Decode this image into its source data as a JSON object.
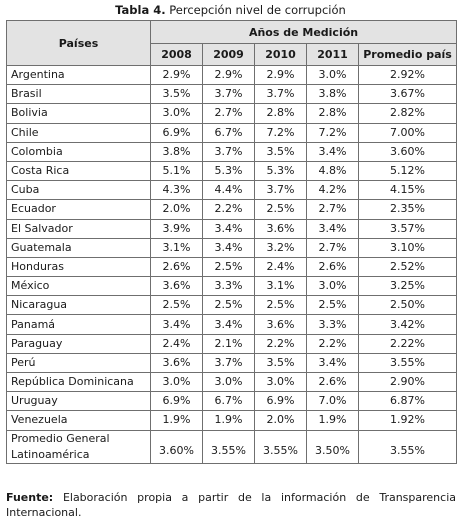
{
  "caption": {
    "label": "Tabla 4.",
    "title": "Percepción nivel de corrupción"
  },
  "header": {
    "countries": "Países",
    "group": "Años de Medición",
    "columns": [
      "2008",
      "2009",
      "2010",
      "2011",
      "Promedio país"
    ]
  },
  "rows": [
    {
      "country": "Argentina",
      "values": [
        "2.9%",
        "2.9%",
        "2.9%",
        "3.0%",
        "2.92%"
      ]
    },
    {
      "country": "Brasil",
      "values": [
        "3.5%",
        "3.7%",
        "3.7%",
        "3.8%",
        "3.67%"
      ]
    },
    {
      "country": "Bolivia",
      "values": [
        "3.0%",
        "2.7%",
        "2.8%",
        "2.8%",
        "2.82%"
      ]
    },
    {
      "country": "Chile",
      "values": [
        "6.9%",
        "6.7%",
        "7.2%",
        "7.2%",
        "7.00%"
      ]
    },
    {
      "country": "Colombia",
      "values": [
        "3.8%",
        "3.7%",
        "3.5%",
        "3.4%",
        "3.60%"
      ]
    },
    {
      "country": "Costa Rica",
      "values": [
        "5.1%",
        "5.3%",
        "5.3%",
        "4.8%",
        "5.12%"
      ]
    },
    {
      "country": "Cuba",
      "values": [
        "4.3%",
        "4.4%",
        "3.7%",
        "4.2%",
        "4.15%"
      ]
    },
    {
      "country": "Ecuador",
      "values": [
        "2.0%",
        "2.2%",
        "2.5%",
        "2.7%",
        "2.35%"
      ]
    },
    {
      "country": "El Salvador",
      "values": [
        "3.9%",
        "3.4%",
        "3.6%",
        "3.4%",
        "3.57%"
      ]
    },
    {
      "country": "Guatemala",
      "values": [
        "3.1%",
        "3.4%",
        "3.2%",
        "2.7%",
        "3.10%"
      ]
    },
    {
      "country": "Honduras",
      "values": [
        "2.6%",
        "2.5%",
        "2.4%",
        "2.6%",
        "2.52%"
      ]
    },
    {
      "country": "México",
      "values": [
        "3.6%",
        "3.3%",
        "3.1%",
        "3.0%",
        "3.25%"
      ]
    },
    {
      "country": "Nicaragua",
      "values": [
        "2.5%",
        "2.5%",
        "2.5%",
        "2.5%",
        "2.50%"
      ]
    },
    {
      "country": "Panamá",
      "values": [
        "3.4%",
        "3.4%",
        "3.6%",
        "3.3%",
        "3.42%"
      ]
    },
    {
      "country": "Paraguay",
      "values": [
        "2.4%",
        "2.1%",
        "2.2%",
        "2.2%",
        "2.22%"
      ]
    },
    {
      "country": "Perú",
      "values": [
        "3.6%",
        "3.7%",
        "3.5%",
        "3.4%",
        "3.55%"
      ]
    },
    {
      "country": "República Dominicana",
      "values": [
        "3.0%",
        "3.0%",
        "3.0%",
        "2.6%",
        "2.90%"
      ]
    },
    {
      "country": "Uruguay",
      "values": [
        "6.9%",
        "6.7%",
        "6.9%",
        "7.0%",
        "6.87%"
      ]
    },
    {
      "country": "Venezuela",
      "values": [
        "1.9%",
        "1.9%",
        "2.0%",
        "1.9%",
        "1.92%"
      ]
    }
  ],
  "average_row": {
    "line1": "Promedio General",
    "line2": "Latinoamérica",
    "values": [
      "3.60%",
      "3.55%",
      "3.55%",
      "3.50%",
      "3.55%"
    ]
  },
  "footnote": {
    "label": "Fuente:",
    "text": "Elaboración propia a partir de la información de Transparencia Internacional."
  }
}
